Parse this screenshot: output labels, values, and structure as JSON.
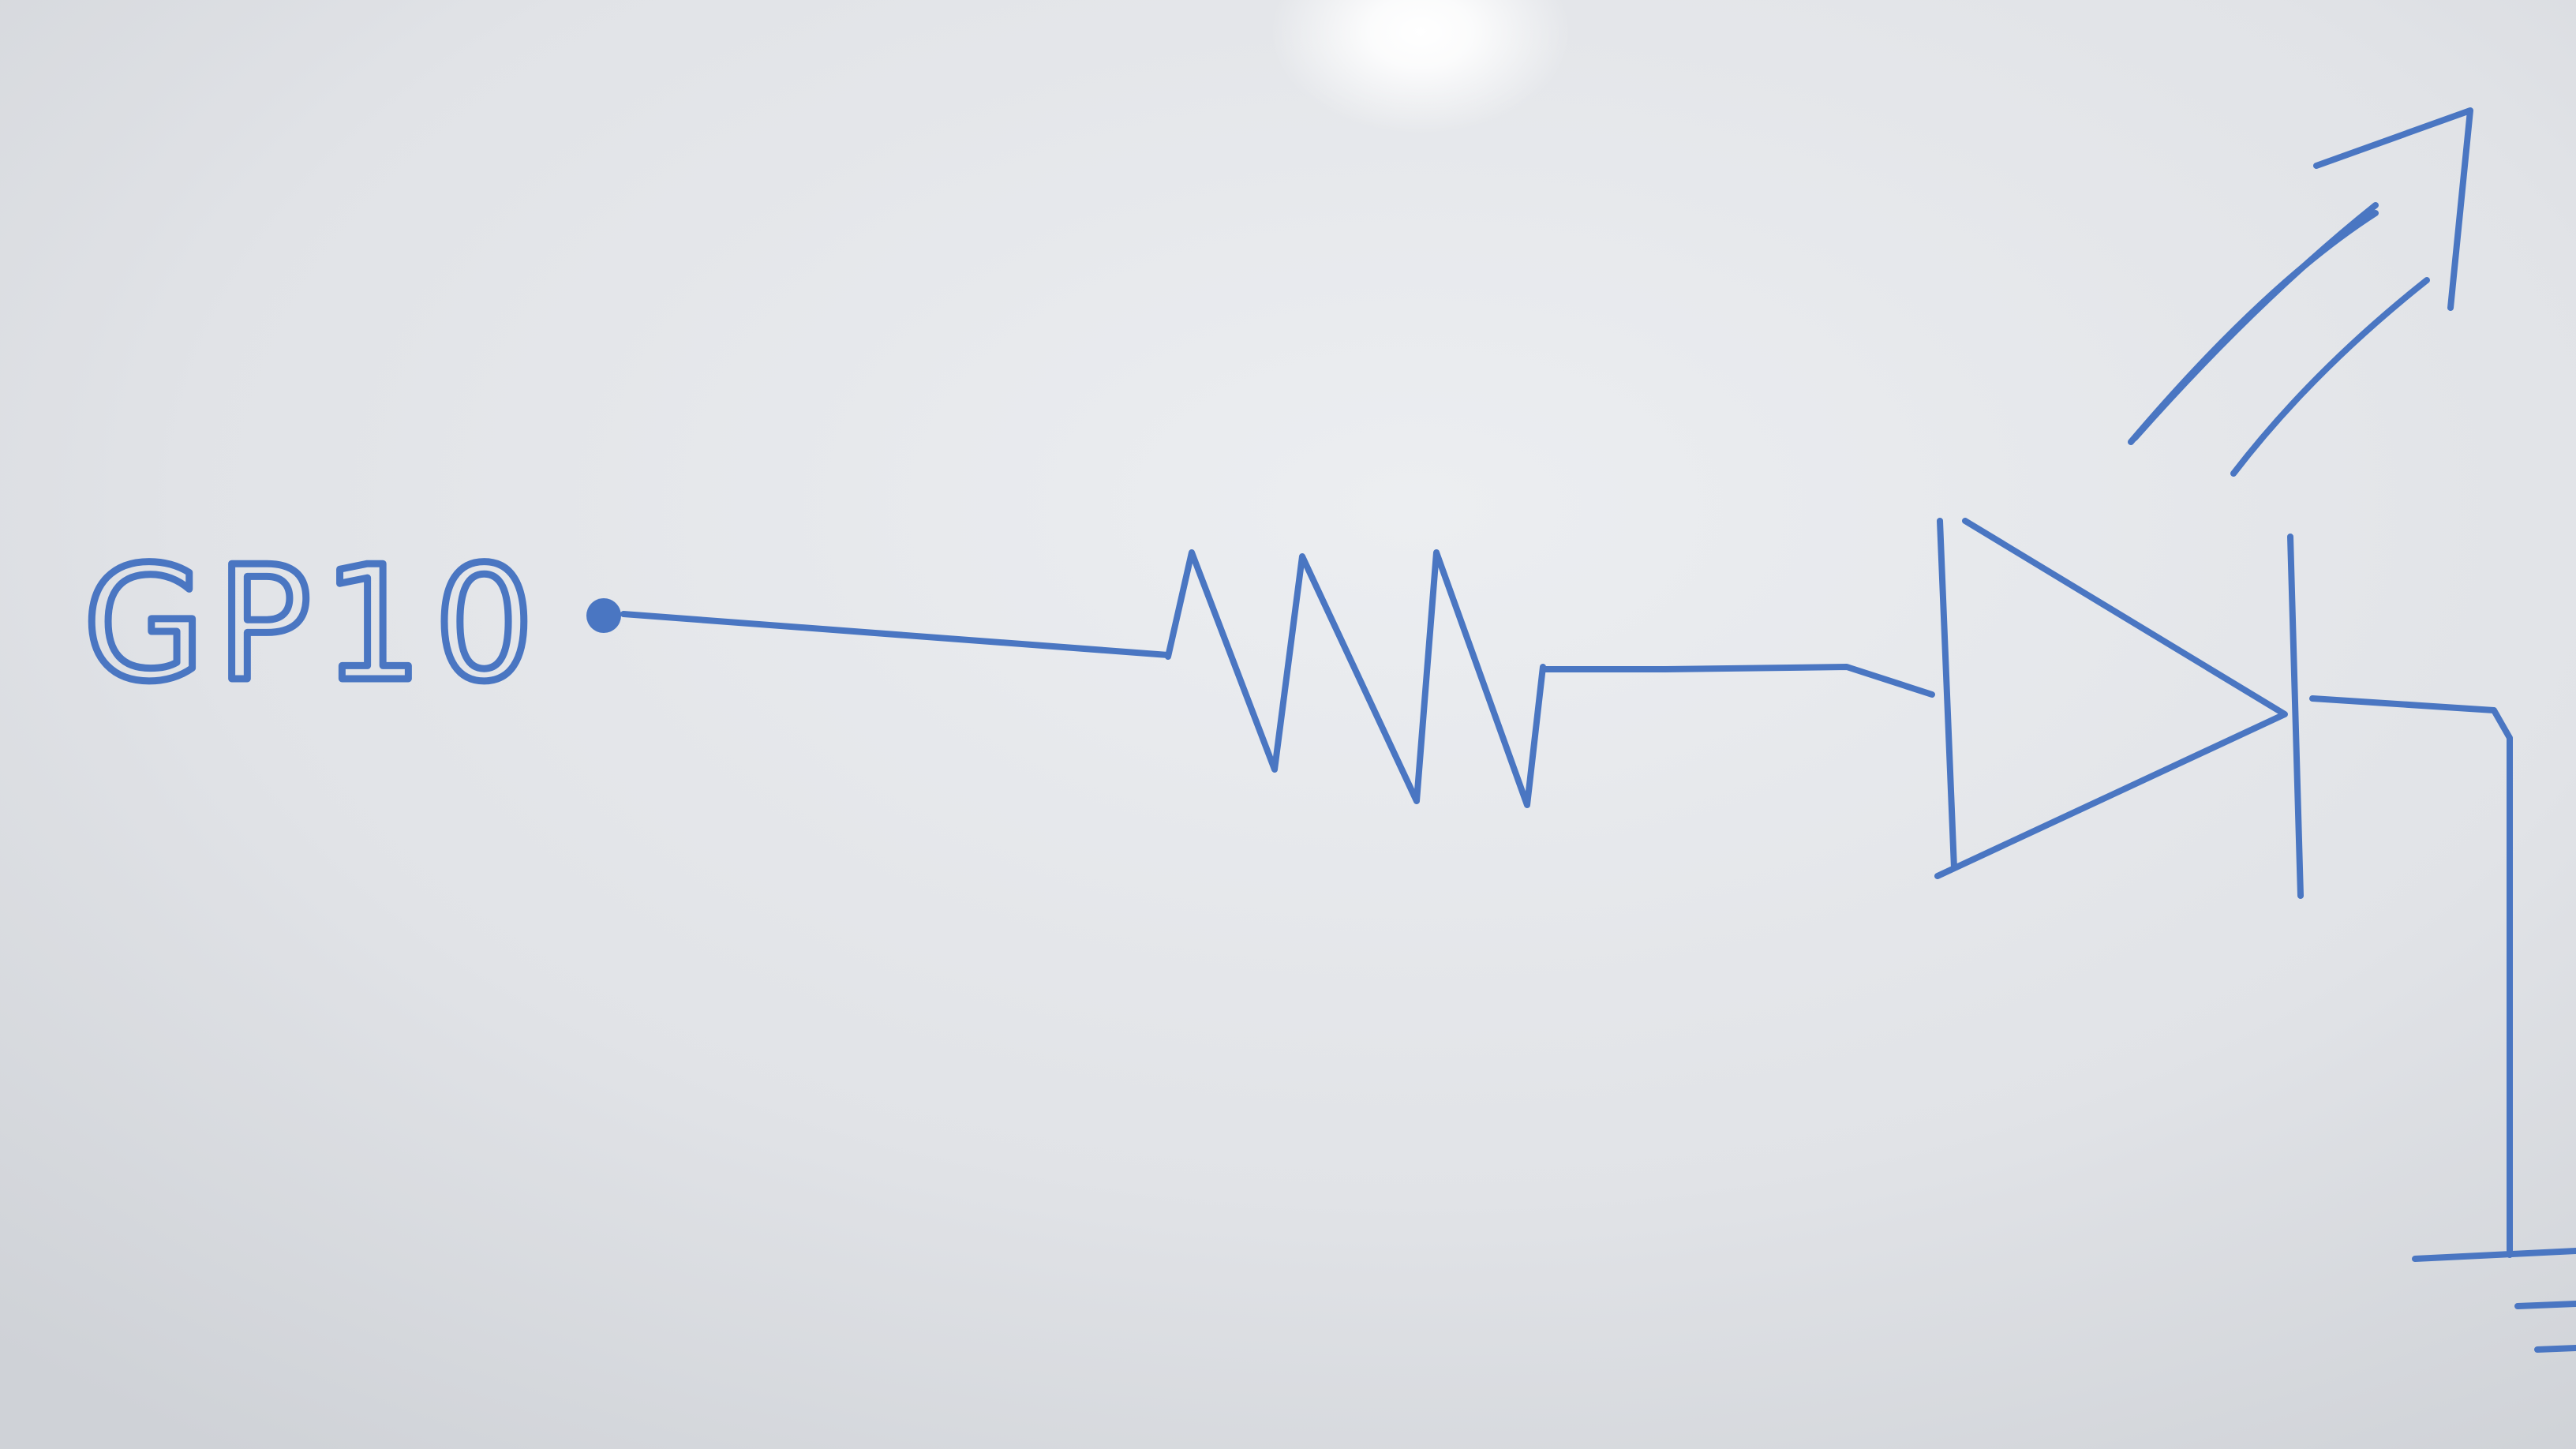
{
  "whiteboard": {
    "label": "GP10",
    "ink_color": "#4a76c2",
    "board_color": "#e6e7ea"
  },
  "components": [
    "pin-dot",
    "resistor",
    "led",
    "light-arrows",
    "ground"
  ]
}
